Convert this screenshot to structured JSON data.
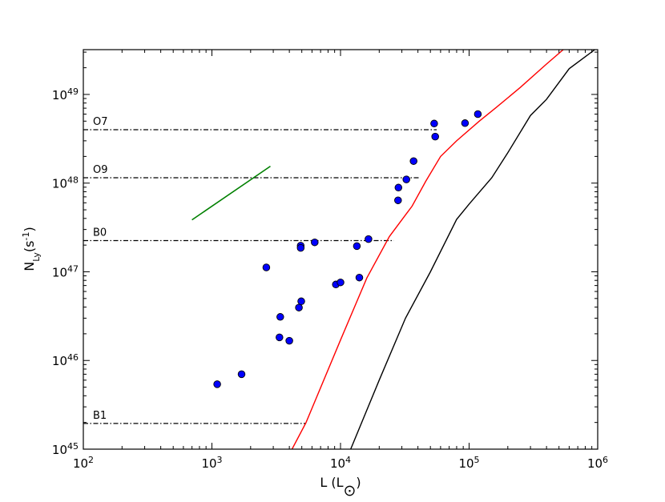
{
  "chart_data": {
    "type": "scatter",
    "xlabel": "L (L",
    "xlabel_sub": "⊙",
    "xlabel_close": ")",
    "ylabel": "N",
    "ylabel_sub": "Ly",
    "ylabel_unit": "(s",
    "ylabel_unit_sup": "-1",
    "ylabel_unit_close": ")",
    "x_scale": "log",
    "y_scale": "log",
    "xlim": [
      100,
      1000000
    ],
    "ylim": [
      1e+45,
      3.2e+49
    ],
    "x_ticks": [
      {
        "value": 100,
        "base": "10",
        "exp": "2"
      },
      {
        "value": 1000,
        "base": "10",
        "exp": "3"
      },
      {
        "value": 10000,
        "base": "10",
        "exp": "4"
      },
      {
        "value": 100000,
        "base": "10",
        "exp": "5"
      },
      {
        "value": 1000000,
        "base": "10",
        "exp": "6"
      }
    ],
    "y_ticks": [
      {
        "value": 1e+45,
        "base": "10",
        "exp": "45"
      },
      {
        "value": 1e+46,
        "base": "10",
        "exp": "46"
      },
      {
        "value": 1e+47,
        "base": "10",
        "exp": "47"
      },
      {
        "value": 1e+48,
        "base": "10",
        "exp": "48"
      },
      {
        "value": 1e+49,
        "base": "10",
        "exp": "49"
      }
    ],
    "grid": false,
    "colors": {
      "points": "#0000ff",
      "red_curve": "#ff0000",
      "black_curve": "#000000",
      "green_line": "#008000",
      "spectral_lines": "#000000"
    },
    "points": [
      {
        "x": 1100,
        "y": 5.4e+45
      },
      {
        "x": 1700,
        "y": 7e+45
      },
      {
        "x": 2650,
        "y": 1.12e+47
      },
      {
        "x": 3400,
        "y": 3.1e+46
      },
      {
        "x": 3350,
        "y": 1.82e+46
      },
      {
        "x": 4000,
        "y": 1.67e+46
      },
      {
        "x": 4750,
        "y": 3.95e+46
      },
      {
        "x": 4950,
        "y": 4.65e+46
      },
      {
        "x": 4900,
        "y": 1.97e+47
      },
      {
        "x": 4900,
        "y": 1.86e+47
      },
      {
        "x": 6300,
        "y": 2.15e+47
      },
      {
        "x": 9200,
        "y": 7.2e+46
      },
      {
        "x": 10000,
        "y": 7.6e+46
      },
      {
        "x": 13400,
        "y": 1.95e+47
      },
      {
        "x": 14000,
        "y": 8.6e+46
      },
      {
        "x": 16500,
        "y": 2.34e+47
      },
      {
        "x": 28000,
        "y": 6.4e+47
      },
      {
        "x": 28200,
        "y": 8.9e+47
      },
      {
        "x": 32500,
        "y": 1.1e+48
      },
      {
        "x": 37000,
        "y": 1.77e+48
      },
      {
        "x": 53500,
        "y": 4.7e+48
      },
      {
        "x": 54500,
        "y": 3.35e+48
      },
      {
        "x": 93000,
        "y": 4.75e+48
      },
      {
        "x": 117000,
        "y": 6e+48
      }
    ],
    "red_curve": [
      [
        4200,
        1e+45
      ],
      [
        5400,
        2e+45
      ],
      [
        10000,
        1.7e+46
      ],
      [
        16000,
        8.5e+46
      ],
      [
        24000,
        2.5e+47
      ],
      [
        36000,
        5.5e+47
      ],
      [
        46000,
        1.05e+48
      ],
      [
        60000,
        2e+48
      ],
      [
        80000,
        3e+48
      ],
      [
        120000,
        5e+48
      ],
      [
        160000,
        7e+48
      ],
      [
        250000,
        1.2e+49
      ],
      [
        400000,
        2.2e+49
      ],
      [
        540000,
        3.2e+49
      ]
    ],
    "black_curve": [
      [
        12000,
        1e+45
      ],
      [
        20000,
        6e+45
      ],
      [
        32000,
        3e+46
      ],
      [
        50000,
        1e+47
      ],
      [
        80000,
        3.9e+47
      ],
      [
        100000,
        5.8e+47
      ],
      [
        150000,
        1.15e+48
      ],
      [
        200000,
        2.2e+48
      ],
      [
        300000,
        5.8e+48
      ],
      [
        400000,
        8.8e+48
      ],
      [
        600000,
        1.95e+49
      ],
      [
        950000,
        3.2e+49
      ]
    ],
    "green_line": [
      [
        700,
        3.85e+47
      ],
      [
        2850,
        1.55e+48
      ]
    ],
    "spectral_types": [
      {
        "label": "O7",
        "y": 4e+48,
        "x_end": 56000
      },
      {
        "label": "O9",
        "y": 1.15e+48,
        "x_end": 42000
      },
      {
        "label": "B0",
        "y": 2.25e+47,
        "x_end": 26000
      },
      {
        "label": "B1",
        "y": 1.95e+45,
        "x_end": 5400
      }
    ]
  }
}
